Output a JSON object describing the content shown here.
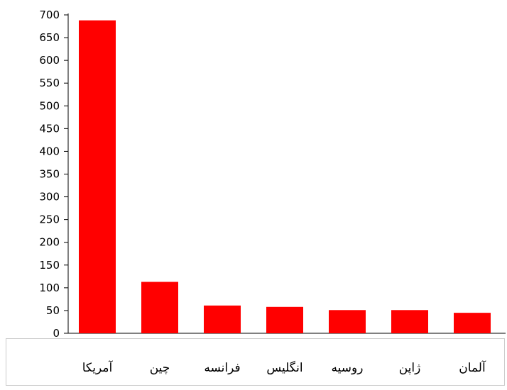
{
  "chart_data": {
    "type": "bar",
    "categories": [
      "آمریکا",
      "چین",
      "فرانسه",
      "انگلیس",
      "روسیه",
      "ژاپن",
      "آلمان"
    ],
    "values": [
      688,
      113,
      61,
      58,
      51,
      51,
      45
    ],
    "title": "",
    "xlabel": "",
    "ylabel": "",
    "ylim": [
      0,
      700
    ],
    "yticks": [
      "0",
      "50",
      "100",
      "150",
      "200",
      "250",
      "300",
      "350",
      "400",
      "450",
      "500",
      "550",
      "600",
      "650",
      "700"
    ],
    "grid": false,
    "legend": "none",
    "bar_color": "#ff0000",
    "axis_color": "#000000",
    "panel_border_color": "#cccccc"
  }
}
